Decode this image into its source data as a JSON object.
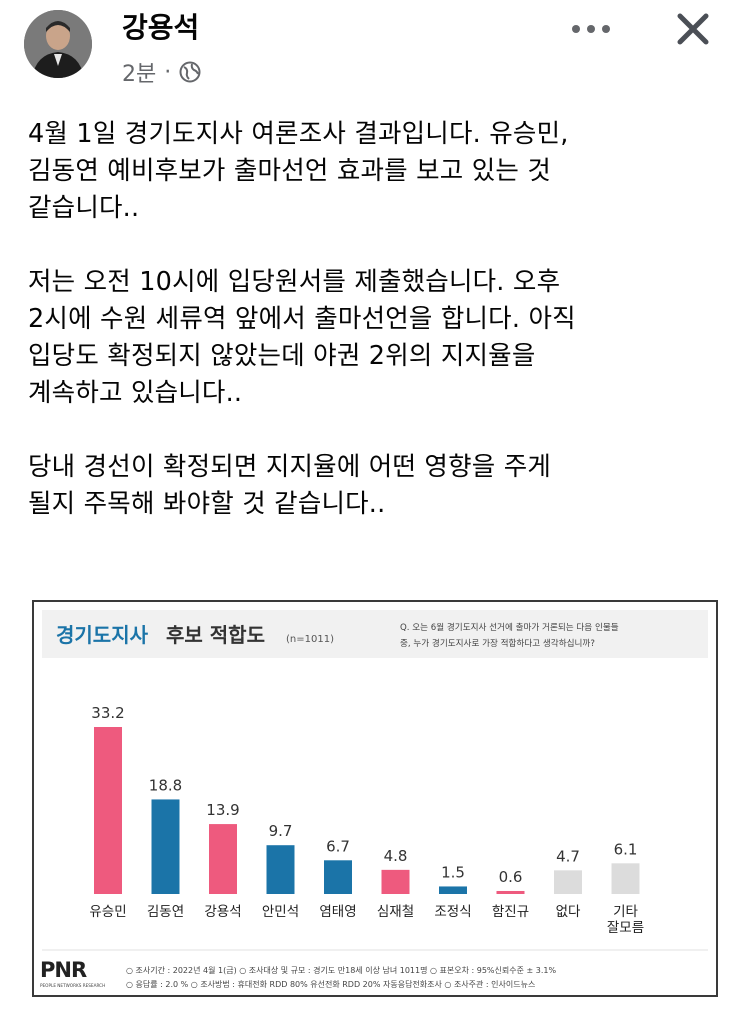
{
  "post": {
    "author": "강용석",
    "time": "2분",
    "visibility_icon": "globe-icon",
    "paragraphs": [
      "4월 1일 경기도지사 여론조사 결과입니다. 유승민,\n김동연 예비후보가 출마선언 효과를 보고 있는 것\n같습니다..",
      "저는 오전 10시에 입당원서를 제출했습니다. 오후\n2시에 수원 세류역 앞에서 출마선언을 합니다. 아직\n입당도 확정되지 않았는데 야권 2위의 지지율을\n계속하고 있습니다..",
      "당내 경선이 확정되면 지지율에 어떤 영향을 주게\n될지 주목해 봐야할 것 같습니다.."
    ]
  },
  "chart_data": {
    "type": "bar",
    "title_accent": "경기도지사",
    "title_rest": "후보 적합도",
    "title_note": "(n=1011)",
    "question_line1": "Q. 오는 6월 경기도지사 선거에 출마가 거론되는 다음 인물들",
    "question_line2": "중, 누가 경기도지사로 가장 적합하다고 생각하십니까?",
    "categories": [
      "유승민",
      "김동연",
      "강용석",
      "안민석",
      "염태영",
      "심재철",
      "조정식",
      "함진규",
      "없다",
      "기타\n잘모름"
    ],
    "values": [
      33.2,
      18.8,
      13.9,
      9.7,
      6.7,
      4.8,
      1.5,
      0.6,
      4.7,
      6.1
    ],
    "value_labels": [
      "33.2",
      "18.8",
      "13.9",
      "9.7",
      "6.7",
      "4.8",
      "1.5",
      "0.6",
      "4.7",
      "6.1"
    ],
    "colors": [
      "#ee5a7e",
      "#1b74a8",
      "#ee5a7e",
      "#1b74a8",
      "#1b74a8",
      "#ee5a7e",
      "#1b74a8",
      "#ee5a7e",
      "#dcdcdc",
      "#dcdcdc"
    ],
    "ylim": [
      0,
      35
    ],
    "legend": "none",
    "grid": false,
    "logo": "PNR",
    "logo_sub": "PEOPLE NETWORKS RESEARCH",
    "footnotes": [
      "○ 조사기간 : 2022년 4월 1(금)  ○ 조사대상 및 규모 : 경기도 만18세 이상 남녀 1011명  ○ 표본오차 : 95%신뢰수준 ± 3.1%",
      "○ 응답률 : 2.0 %  ○ 조사방법 : 휴대전화 RDD 80% 유선전화 RDD 20% 자동응답전화조사  ○ 조사주관 : 인사이드뉴스"
    ]
  }
}
